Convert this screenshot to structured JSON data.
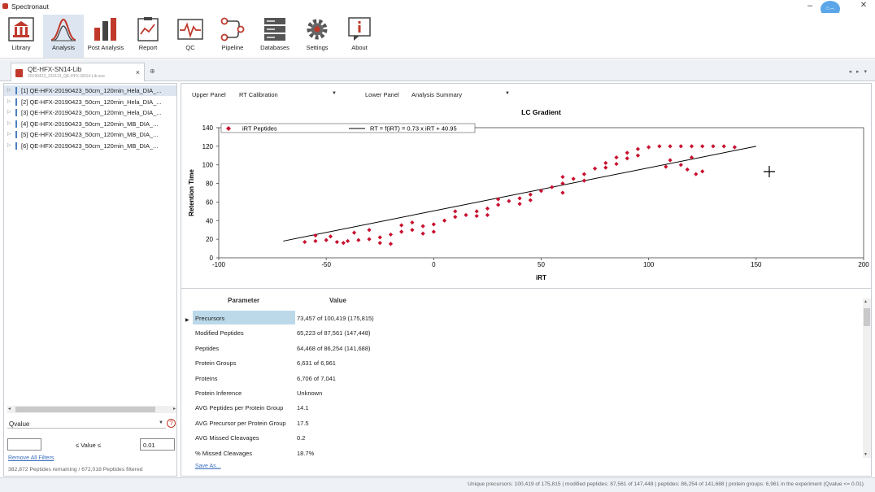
{
  "window": {
    "title": "Spectronaut",
    "avatar_text": "ෆ෴"
  },
  "toolbar": {
    "items": [
      {
        "label": "Library"
      },
      {
        "label": "Analysis"
      },
      {
        "label": "Post Analysis"
      },
      {
        "label": "Report"
      },
      {
        "label": "QC"
      },
      {
        "label": "Pipeline"
      },
      {
        "label": "Databases"
      },
      {
        "label": "Settings"
      },
      {
        "label": "About"
      }
    ]
  },
  "doc_tab": {
    "title": "QE-HFX-SN14-Lib",
    "subtitle": "20190423_230113_QE-HFX-SN14-Lib.sne",
    "close": "×"
  },
  "runs": [
    {
      "index": "[1]",
      "name": "QE-HFX-20190423_50cm_120min_Hela_DIA_..."
    },
    {
      "index": "[2]",
      "name": "QE-HFX-20190423_50cm_120min_Hela_DIA_..."
    },
    {
      "index": "[3]",
      "name": "QE-HFX-20190423_50cm_120min_Hela_DIA_..."
    },
    {
      "index": "[4]",
      "name": "QE-HFX-20190423_50cm_120min_MB_DIA_..."
    },
    {
      "index": "[5]",
      "name": "QE-HFX-20190423_50cm_120min_MB_DIA_..."
    },
    {
      "index": "[6]",
      "name": "QE-HFX-20190423_50cm_120min_MB_DIA_..."
    }
  ],
  "filter": {
    "field": "Qvalue",
    "help": "?",
    "min_value": "",
    "middle_label": "≤ Value ≤",
    "max_value": "0.01",
    "remove_all": "Remove All Filters",
    "remaining": "382,872 Peptides remaining / 672,018 Peptides filtered"
  },
  "panels": {
    "upper_label": "Upper Panel",
    "upper_value": "RT Calibration",
    "lower_label": "Lower Panel",
    "lower_value": "Analysis Summary"
  },
  "chart_data": {
    "type": "scatter",
    "title": "LC Gradient",
    "xlabel": "iRT",
    "ylabel": "Retention Time",
    "xlim": [
      -100,
      200
    ],
    "ylim": [
      0,
      140
    ],
    "x_ticks": [
      "-100",
      "-50",
      "0",
      "50",
      "100",
      "150",
      "200"
    ],
    "y_ticks": [
      "0",
      "20",
      "40",
      "60",
      "80",
      "100",
      "120",
      "140"
    ],
    "legend": [
      "iRT Peptides",
      "RT = f(iRT) = 0.73 x iRT + 40.95"
    ],
    "series": [
      {
        "name": "iRT Peptides",
        "color": "#c8102e",
        "points": [
          [
            -60,
            17
          ],
          [
            -55,
            18
          ],
          [
            -50,
            19
          ],
          [
            -45,
            17
          ],
          [
            -42,
            16
          ],
          [
            -40,
            18
          ],
          [
            -35,
            19
          ],
          [
            -30,
            20
          ],
          [
            -25,
            22
          ],
          [
            -20,
            25
          ],
          [
            -15,
            28
          ],
          [
            -10,
            30
          ],
          [
            -5,
            34
          ],
          [
            0,
            36
          ],
          [
            5,
            40
          ],
          [
            10,
            44
          ],
          [
            15,
            46
          ],
          [
            20,
            50
          ],
          [
            25,
            53
          ],
          [
            30,
            57
          ],
          [
            35,
            61
          ],
          [
            40,
            64
          ],
          [
            45,
            68
          ],
          [
            50,
            72
          ],
          [
            55,
            76
          ],
          [
            60,
            80
          ],
          [
            65,
            85
          ],
          [
            70,
            90
          ],
          [
            75,
            96
          ],
          [
            80,
            102
          ],
          [
            85,
            108
          ],
          [
            90,
            113
          ],
          [
            95,
            117
          ],
          [
            100,
            119
          ],
          [
            105,
            120
          ],
          [
            110,
            120
          ],
          [
            115,
            120
          ],
          [
            120,
            120
          ],
          [
            125,
            120
          ],
          [
            130,
            120
          ],
          [
            135,
            120
          ],
          [
            140,
            119
          ],
          [
            -48,
            23
          ],
          [
            -30,
            30
          ],
          [
            -10,
            38
          ],
          [
            10,
            50
          ],
          [
            30,
            63
          ],
          [
            60,
            87
          ],
          [
            80,
            97
          ],
          [
            90,
            107
          ],
          [
            -20,
            15
          ],
          [
            20,
            45
          ],
          [
            110,
            105
          ],
          [
            115,
            100
          ],
          [
            118,
            95
          ],
          [
            122,
            90
          ],
          [
            -37,
            27
          ],
          [
            -15,
            35
          ],
          [
            0,
            28
          ],
          [
            40,
            58
          ],
          [
            60,
            70
          ],
          [
            -55,
            24
          ],
          [
            -25,
            16
          ],
          [
            -5,
            26
          ],
          [
            25,
            46
          ],
          [
            45,
            62
          ],
          [
            70,
            83
          ],
          [
            85,
            101
          ],
          [
            95,
            110
          ],
          [
            108,
            98
          ],
          [
            120,
            108
          ],
          [
            125,
            93
          ]
        ]
      }
    ],
    "fit_line": {
      "slope": 0.73,
      "intercept": 40.95,
      "x_from": -70,
      "x_to": 150
    }
  },
  "summary": {
    "header_param": "Parameter",
    "header_value": "Value",
    "rows": [
      {
        "name": "Precursors",
        "value": "73,457 of 100,419 (175,815)"
      },
      {
        "name": "Modified Peptides",
        "value": "65,223 of 87,561 (147,448)"
      },
      {
        "name": "Peptides",
        "value": "64,468 of 86,254 (141,688)"
      },
      {
        "name": "Protein Groups",
        "value": "6,631 of 6,961"
      },
      {
        "name": "Proteins",
        "value": "6,706 of 7,041"
      },
      {
        "name": "Protein Inference",
        "value": "Unknown"
      },
      {
        "name": "AVG Peptides per Protein Group",
        "value": "14.1"
      },
      {
        "name": "AVG Precursor per Protein Group",
        "value": "17.5"
      },
      {
        "name": "AVG Missed Cleavages",
        "value": "0.2"
      },
      {
        "name": "% Missed Cleavages",
        "value": "18.7%"
      }
    ],
    "save_as": "Save As..."
  },
  "status": {
    "text": "Unique precursors: 100,419 of 175,815 | modified peptides: 87,561 of 147,448 | peptides: 86,254 of 141,688 | protein groups: 6,961 in the experiment (Qvalue <= 0.01)"
  }
}
